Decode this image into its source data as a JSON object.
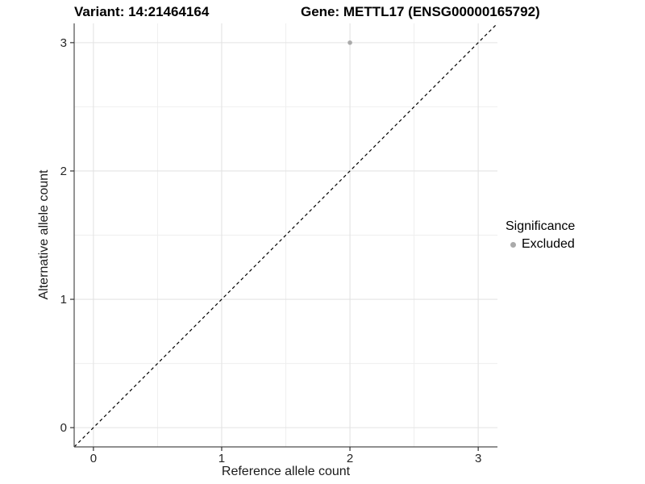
{
  "chart_data": {
    "type": "scatter",
    "titles": {
      "left": "Variant: 14:21464164",
      "right": "Gene: METTL17 (ENSG00000165792)"
    },
    "xlabel": "Reference allele count",
    "ylabel": "Alternative allele count",
    "xlim": [
      -0.15,
      3.15
    ],
    "ylim": [
      -0.15,
      3.15
    ],
    "x_ticks": [
      0,
      1,
      2,
      3
    ],
    "y_ticks": [
      0,
      1,
      2,
      3
    ],
    "x_minor_ticks": [
      0.5,
      1.5,
      2.5
    ],
    "y_minor_ticks": [
      0.5,
      1.5,
      2.5
    ],
    "series": [
      {
        "name": "Excluded",
        "color": "#aaaaaa",
        "points": [
          {
            "x": 2,
            "y": 3
          }
        ]
      }
    ],
    "identity_line": {
      "style": "dashed",
      "color": "#000000",
      "from": [
        -0.15,
        -0.15
      ],
      "to": [
        3.15,
        3.15
      ]
    },
    "legend": {
      "title": "Significance",
      "position": "right",
      "items": [
        {
          "label": "Excluded",
          "color": "#aaaaaa"
        }
      ]
    },
    "grid": {
      "on": true,
      "major_color": "#e3e3e3",
      "minor_color": "#efefef"
    },
    "axis": {
      "line_color": "#4d4d4d",
      "tick_color": "#333333",
      "label_color": "#262626"
    }
  }
}
